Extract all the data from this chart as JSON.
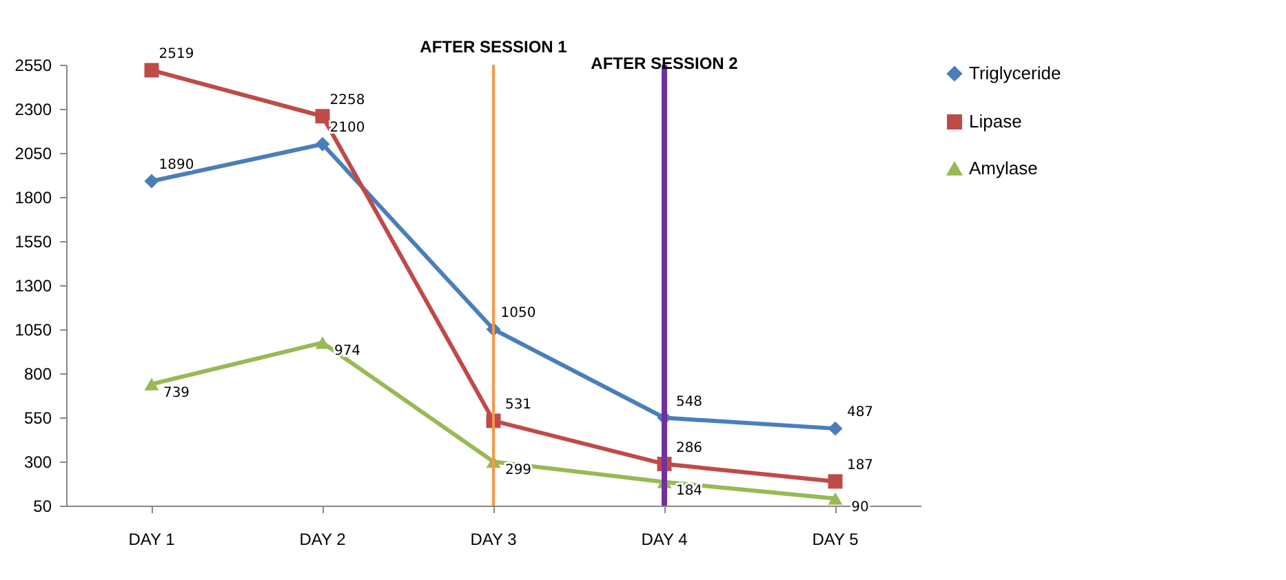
{
  "chart_data": {
    "type": "line",
    "categories": [
      "DAY 1",
      "DAY 2",
      "DAY 3",
      "DAY 4",
      "DAY 5"
    ],
    "series": [
      {
        "name": "Triglyceride",
        "color": "#4a7ebb",
        "marker": "diamond",
        "values": [
          1890,
          2100,
          1050,
          548,
          487
        ]
      },
      {
        "name": "Lipase",
        "color": "#be4b48",
        "marker": "square",
        "values": [
          2519,
          2258,
          531,
          286,
          187
        ]
      },
      {
        "name": "Amylase",
        "color": "#98b954",
        "marker": "triangle",
        "values": [
          739,
          974,
          299,
          184,
          90
        ]
      }
    ],
    "ylim": [
      50,
      2550
    ],
    "yticks": [
      50,
      300,
      550,
      800,
      1050,
      1300,
      1550,
      1800,
      2050,
      2300,
      2550
    ],
    "grid": false,
    "legend": "right",
    "data_labels": true,
    "ref_lines": [
      {
        "axis": "x",
        "value": "DAY 3",
        "label": "AFTER SESSION 1",
        "color": "#f79646"
      },
      {
        "axis": "x",
        "value": "DAY 4",
        "label": "AFTER SESSION 2",
        "color": "#7030a0"
      }
    ]
  }
}
